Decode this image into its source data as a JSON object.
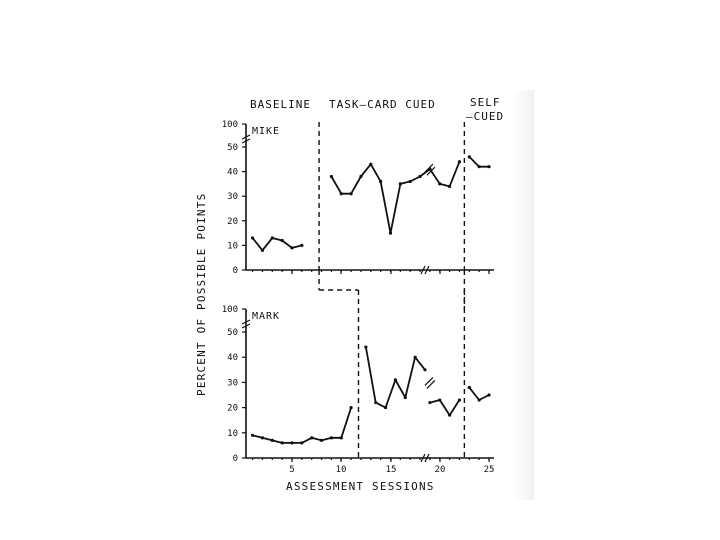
{
  "chart_data": {
    "type": "line",
    "phases": [
      "BASELINE",
      "TASK–CARD CUED",
      "SELF",
      "–CUED"
    ],
    "ylabel": "PERCENT OF POSSIBLE POINTS",
    "xlabel": "ASSESSMENT SESSIONS",
    "xlim": [
      0,
      26
    ],
    "ylim": [
      0,
      100
    ],
    "x_ticks": [
      "5",
      "10",
      "15",
      "20",
      "25"
    ],
    "y_ticks": [
      "0",
      "10",
      "20",
      "30",
      "40",
      "50",
      "100"
    ],
    "panels": [
      {
        "subject": "MIKE",
        "phase_change_x": [
          7.75,
          22.5
        ],
        "segments": [
          [
            [
              1,
              13
            ],
            [
              2,
              8
            ],
            [
              3,
              13
            ],
            [
              4,
              12
            ],
            [
              5,
              9
            ],
            [
              6,
              10
            ]
          ],
          [
            [
              9,
              38
            ],
            [
              10,
              31
            ],
            [
              11,
              31
            ],
            [
              12,
              38
            ],
            [
              13,
              43
            ],
            [
              14,
              36
            ],
            [
              15,
              15
            ],
            [
              16,
              35
            ],
            [
              17,
              36
            ],
            [
              18,
              38
            ],
            [
              19,
              41
            ]
          ],
          [
            [
              19,
              41
            ],
            [
              20,
              35
            ],
            [
              21,
              34
            ],
            [
              22,
              44
            ]
          ],
          [
            [
              23,
              46
            ],
            [
              24,
              42
            ],
            [
              25,
              42
            ]
          ]
        ]
      },
      {
        "subject": "MARK",
        "phase_change_x": [
          11.75,
          22.5
        ],
        "segments": [
          [
            [
              1,
              9
            ],
            [
              2,
              8
            ],
            [
              3,
              7
            ],
            [
              4,
              6
            ],
            [
              5,
              6
            ],
            [
              6,
              6
            ],
            [
              7,
              8
            ],
            [
              8,
              7
            ],
            [
              9,
              8
            ],
            [
              10,
              8
            ],
            [
              11,
              20
            ]
          ],
          [
            [
              12.5,
              44
            ],
            [
              13.5,
              22
            ],
            [
              14.5,
              20
            ],
            [
              15.5,
              31
            ],
            [
              16.5,
              24
            ],
            [
              17.5,
              40
            ],
            [
              18.5,
              35
            ]
          ],
          [
            [
              19,
              22
            ],
            [
              20,
              23
            ],
            [
              21,
              17
            ],
            [
              22,
              23
            ]
          ],
          [
            [
              23,
              28
            ],
            [
              24,
              23
            ],
            [
              25,
              25
            ]
          ]
        ]
      }
    ]
  }
}
